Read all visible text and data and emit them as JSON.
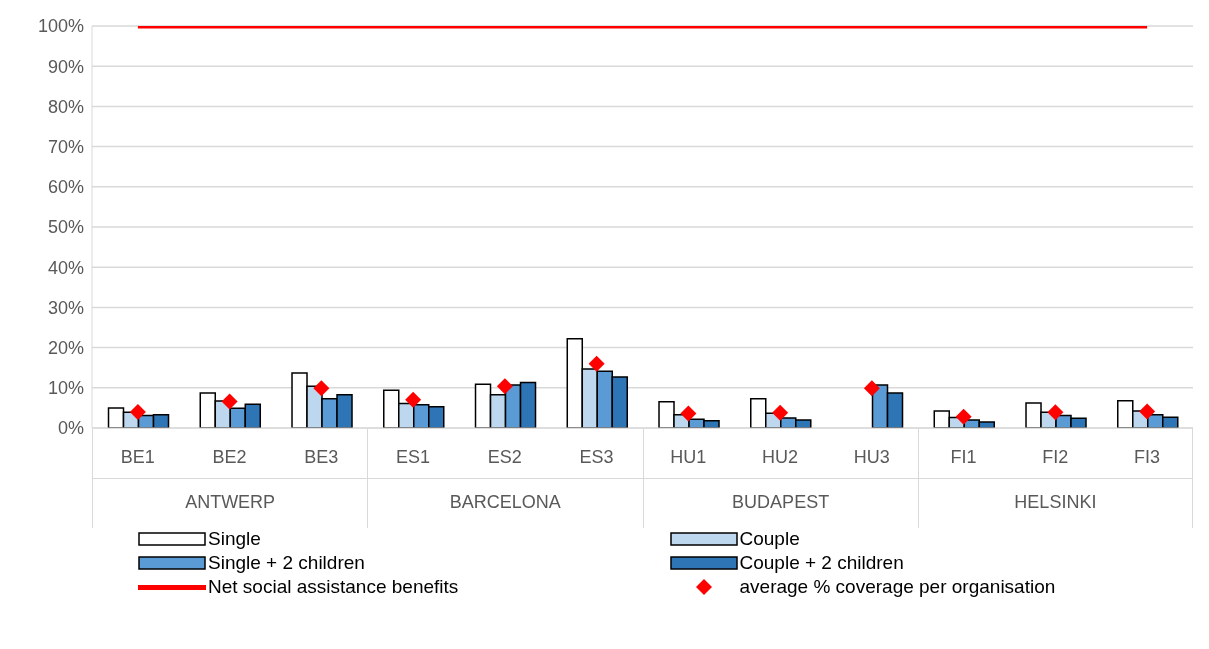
{
  "chart_data": {
    "type": "bar",
    "categories": [
      "BE1",
      "BE2",
      "BE3",
      "ES1",
      "ES2",
      "ES3",
      "HU1",
      "HU2",
      "HU3",
      "FI1",
      "FI2",
      "FI3"
    ],
    "series": [
      {
        "name": "Single",
        "color": "#ffffff",
        "values": [
          5.0,
          8.7,
          13.7,
          9.4,
          10.9,
          22.2,
          6.5,
          7.3,
          null,
          4.2,
          6.2,
          6.8
        ]
      },
      {
        "name": "Couple",
        "color": "#bdd7ee",
        "values": [
          3.9,
          6.7,
          10.4,
          6.1,
          8.3,
          14.7,
          3.3,
          3.7,
          null,
          2.6,
          3.9,
          4.2
        ]
      },
      {
        "name": "Single + 2 children",
        "color": "#5b9bd5",
        "values": [
          3.1,
          4.9,
          7.3,
          5.8,
          10.7,
          14.1,
          2.2,
          2.5,
          10.7,
          2.0,
          3.1,
          3.3
        ]
      },
      {
        "name": "Couple + 2 children",
        "color": "#2e75b6",
        "values": [
          3.3,
          5.9,
          8.3,
          5.3,
          11.3,
          12.7,
          1.8,
          2.0,
          8.7,
          1.5,
          2.4,
          2.7
        ]
      },
      {
        "name": "Net social assistance benefits",
        "type": "line",
        "color": "#ff0000",
        "marker": "none",
        "values": [
          100,
          100,
          100,
          100,
          100,
          100,
          100,
          100,
          100,
          100,
          100,
          100
        ]
      },
      {
        "name": "average % coverage per organisation",
        "type": "scatter",
        "color": "#ff0000",
        "marker": "diamond",
        "values": [
          4.0,
          6.6,
          9.9,
          7.0,
          10.4,
          16.0,
          3.6,
          3.8,
          9.9,
          2.8,
          3.9,
          4.1
        ]
      }
    ],
    "annotations": [
      "ANTWERP",
      "BARCELONA",
      "BUDAPEST",
      "HELSINKI"
    ],
    "ylim": [
      0,
      100
    ],
    "yticks": [
      {
        "value": 0,
        "label": "0%"
      },
      {
        "value": 10,
        "label": "10%"
      },
      {
        "value": 20,
        "label": "20%"
      },
      {
        "value": 30,
        "label": "30%"
      },
      {
        "value": 40,
        "label": "40%"
      },
      {
        "value": 50,
        "label": "50%"
      },
      {
        "value": 60,
        "label": "60%"
      },
      {
        "value": 70,
        "label": "70%"
      },
      {
        "value": 80,
        "label": "80%"
      },
      {
        "value": 90,
        "label": "90%"
      },
      {
        "value": 100,
        "label": "100%"
      }
    ],
    "grid": "y",
    "legend": "bottom"
  }
}
